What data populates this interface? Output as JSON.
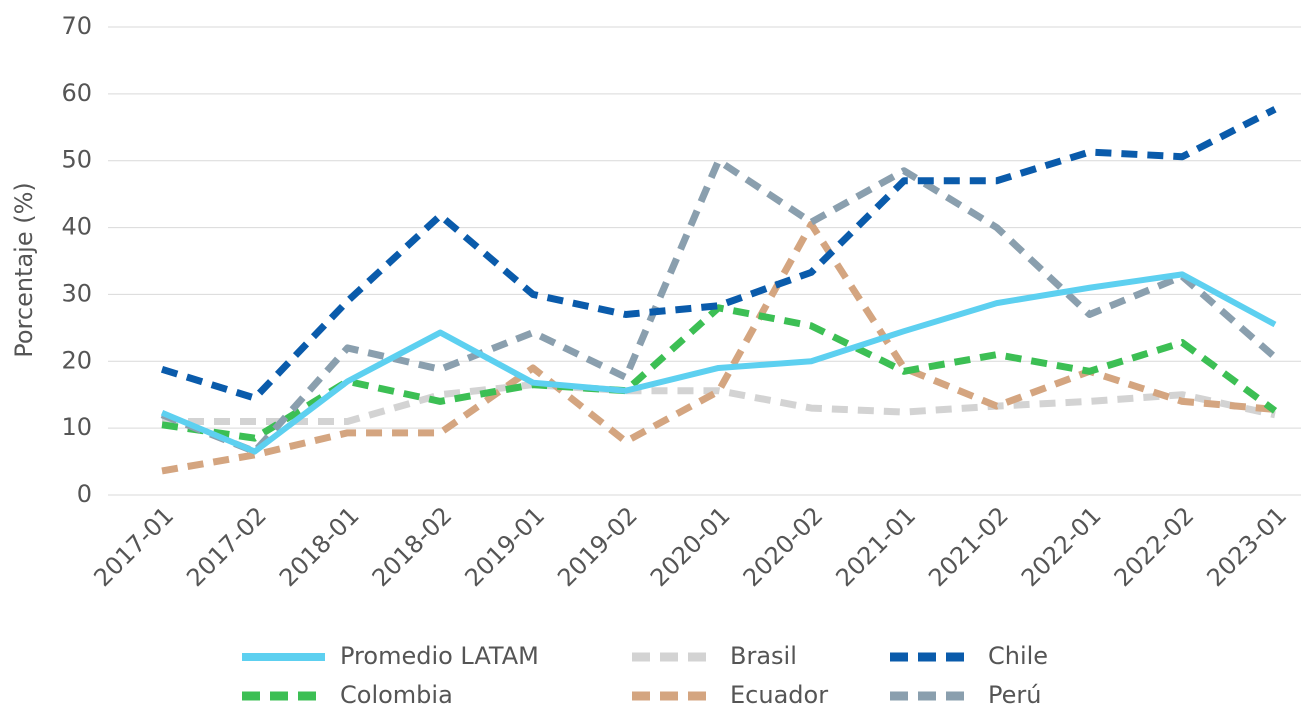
{
  "chart_data": {
    "type": "line",
    "y_label": "Porcentaje (%)",
    "categories": [
      "2017-01",
      "2017-02",
      "2018-01",
      "2018-02",
      "2019-01",
      "2019-02",
      "2020-01",
      "2020-02",
      "2021-01",
      "2021-02",
      "2022-01",
      "2022-02",
      "2023-01"
    ],
    "series": [
      {
        "name": "Promedio LATAM",
        "color": "#5dd0f0",
        "dashed": false,
        "values": [
          12.3,
          6.5,
          17,
          24.3,
          16.8,
          15.6,
          19,
          20,
          24.5,
          28.7,
          31,
          33,
          25.5
        ]
      },
      {
        "name": "Brasil",
        "color": "#d3d3d3",
        "dashed": true,
        "values": [
          11,
          11,
          11,
          15,
          16.5,
          15.6,
          15.6,
          13,
          12.4,
          13.3,
          14,
          15,
          12
        ]
      },
      {
        "name": "Chile",
        "color": "#0a5bab",
        "dashed": true,
        "values": [
          18.8,
          14.5,
          29,
          41.8,
          30,
          27,
          28.3,
          33.3,
          47,
          47,
          51.3,
          50.6,
          57.7
        ]
      },
      {
        "name": "Colombia",
        "color": "#3cbf54",
        "dashed": true,
        "values": [
          10.5,
          8.5,
          17,
          14,
          16.5,
          15.6,
          28,
          25.3,
          18.5,
          21,
          18.5,
          22.8,
          12.6
        ]
      },
      {
        "name": "Ecuador",
        "color": "#d4a580",
        "dashed": true,
        "values": [
          3.6,
          6,
          9.3,
          9.3,
          19,
          8,
          15.5,
          40.5,
          19,
          13.3,
          18.5,
          14,
          12.8
        ]
      },
      {
        "name": "Perú",
        "color": "#8a9fae",
        "dashed": true,
        "values": [
          12,
          6.5,
          22,
          18.8,
          24.3,
          17.6,
          50,
          40.8,
          48.5,
          40,
          27,
          32.7,
          20.6
        ]
      }
    ],
    "ylim": [
      0,
      70
    ],
    "yticks": [
      0,
      10,
      20,
      30,
      40,
      50,
      60,
      70
    ],
    "grid": true,
    "legend": "bottom"
  }
}
